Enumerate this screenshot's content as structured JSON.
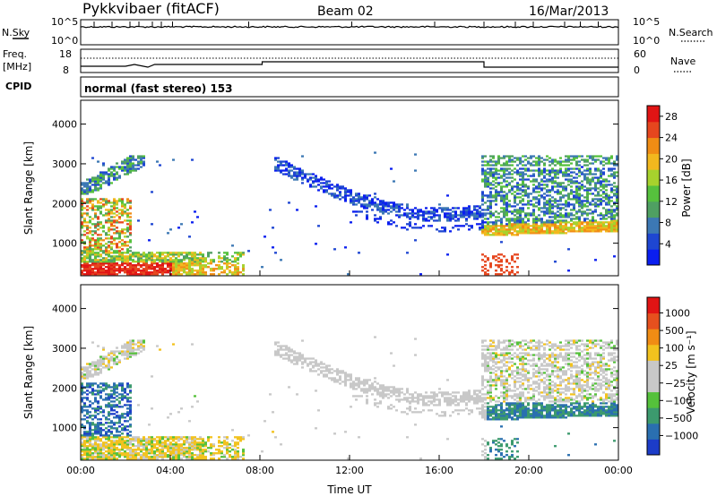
{
  "header": {
    "station": "Pykkvibaer (fitACF)",
    "beam": "Beam 02",
    "date": "16/Mar/2013"
  },
  "top_panels": {
    "nsky": {
      "label": "N.Sky",
      "tick_top": "10^5",
      "tick_bottom": "10^0"
    },
    "nsearch": {
      "label": "N.Search",
      "tick_top": "10^5",
      "tick_bottom": "10^0"
    },
    "freq": {
      "label_line1": "Freq.",
      "label_line2": "[MHz]",
      "tick_top": "18",
      "tick_bottom": "8"
    },
    "nave": {
      "label": "Nave",
      "tick_top": "60",
      "tick_bottom": "0"
    },
    "cpid": {
      "label": "CPID",
      "mode": "normal (fast stereo) 153"
    }
  },
  "chart_data": [
    {
      "type": "heatmap",
      "name": "power",
      "ylabel": "Slant Range [km]",
      "xlabel": "",
      "x_ticks": [
        "00:00",
        "04:00",
        "08:00",
        "12:00",
        "16:00",
        "20:00",
        "00:00"
      ],
      "x_range_hours": [
        0,
        24
      ],
      "y_ticks": [
        1000,
        2000,
        3000,
        4000
      ],
      "ylim": [
        180,
        4600
      ],
      "colorbar": {
        "label": "Power [dB]",
        "ticks": [
          4,
          8,
          12,
          16,
          20,
          24,
          28
        ],
        "range": [
          0,
          30
        ],
        "colors": [
          "#0a1ef0",
          "#1e46d2",
          "#3c78b4",
          "#4fa062",
          "#56c13d",
          "#a7d22d",
          "#f2b81e",
          "#f08c14",
          "#e6461e",
          "#e11414"
        ]
      },
      "features": [
        {
          "region": "near-range band",
          "t_start": 0.0,
          "t_end": 7.3,
          "range_km": [
            200,
            700
          ],
          "level": "high"
        },
        {
          "region": "early-evening band",
          "t_start": 0.0,
          "t_end": 2.2,
          "range_km": [
            1100,
            2000
          ],
          "level": "mid"
        },
        {
          "region": "arc 2500-3200 km",
          "t_start": 0.2,
          "t_end": 2.8,
          "range_km": [
            2300,
            3200
          ],
          "level": "low"
        },
        {
          "region": "main arc",
          "t_start": 8.6,
          "t_end": 18.0,
          "range_km": [
            1500,
            3100
          ],
          "level": "low"
        },
        {
          "region": "late band",
          "t_start": 17.8,
          "t_end": 24.0,
          "range_km": [
            1000,
            3200
          ],
          "level": "mid-high"
        }
      ]
    },
    {
      "type": "heatmap",
      "name": "velocity",
      "ylabel": "Slant Range [km]",
      "xlabel": "Time UT",
      "x_ticks": [
        "00:00",
        "04:00",
        "08:00",
        "12:00",
        "16:00",
        "20:00",
        "00:00"
      ],
      "x_range_hours": [
        0,
        24
      ],
      "y_ticks": [
        1000,
        2000,
        3000,
        4000
      ],
      "ylim": [
        180,
        4600
      ],
      "colorbar": {
        "label": "Velocity [m s⁻¹]",
        "ticks": [
          "1000",
          "500",
          "100",
          "25",
          "−25",
          "−100",
          "−500",
          "−1000"
        ],
        "colors": [
          "#1c3cc8",
          "#2a6fb0",
          "#3c9a6e",
          "#55c13b",
          "#c8c8c8",
          "#c8c8c8",
          "#f2c21e",
          "#f08c14",
          "#e6501e",
          "#e11414"
        ]
      },
      "features": [
        {
          "region": "near-range band",
          "t_start": 0.0,
          "t_end": 7.0,
          "range_km": [
            200,
            800
          ],
          "vel": "negative"
        },
        {
          "region": "main arc",
          "t_start": 8.6,
          "t_end": 18.0,
          "range_km": [
            1500,
            3100
          ],
          "vel": "near-zero"
        },
        {
          "region": "late band",
          "t_start": 17.8,
          "t_end": 24.0,
          "range_km": [
            1000,
            3200
          ],
          "vel": "mixed"
        }
      ]
    }
  ]
}
